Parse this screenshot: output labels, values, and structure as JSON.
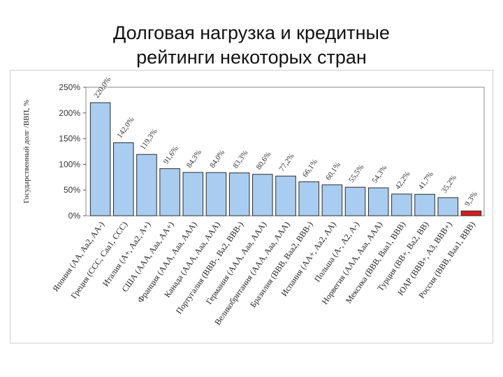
{
  "slide": {
    "title_line1": "Долговая нагрузка и кредитные",
    "title_line2": "рейтинги некоторых стран"
  },
  "chart_data": {
    "type": "bar",
    "title": "",
    "xlabel": "",
    "ylabel": "Государственный долг /ВВП, %",
    "ylim": [
      0,
      250
    ],
    "yticks": [
      "0%",
      "50%",
      "100%",
      "150%",
      "200%",
      "250%"
    ],
    "ytick_values": [
      0,
      50,
      100,
      150,
      200,
      250
    ],
    "grid": false,
    "legend": "none",
    "bar_color": "#a9cdf0",
    "highlight_color": "#d81b1b",
    "categories": [
      "Япония (AA, Aa2, AA-)",
      "Греция (CCC, Caa1, CCC)",
      "Италия (A+, Aa2, A+)",
      "США (AAA, Aaa, AA+)",
      "Франция (AAA, Aaa, AAA)",
      "Канада (AAA, Aaa, AAA)",
      "Португалия (BBB-, Ba2, BBB-)",
      "Германия (AAA, Aaa, AAA)",
      "Великобритания (AAA, Aaa, AAA)",
      "Бразилия (BBB, Baa2, BBB-)",
      "Испания (AA+, Aa2, AA)",
      "Польша (A-, A2, A-)",
      "Норвегия (AAA, Aaa, AAA)",
      "Мексика (BBB, Baa1, BBB)",
      "Турция (BB+, Ba2, BB)",
      "ЮАР (BBB+, A3, BBB+)",
      "Россия (BBB, Baa1, BBB)"
    ],
    "values": [
      220.0,
      142.0,
      119.3,
      91.6,
      84.3,
      84.0,
      83.3,
      80.6,
      77.2,
      66.1,
      60.1,
      55.5,
      54.3,
      42.2,
      41.7,
      35.2,
      9.3
    ],
    "value_labels": [
      "220,0%",
      "142,0%",
      "119,3%",
      "91,6%",
      "84,3%",
      "84,0%",
      "83,3%",
      "80,6%",
      "77,2%",
      "66,1%",
      "60,1%",
      "55,5%",
      "54,3%",
      "42,2%",
      "41,7%",
      "35,2%",
      "9,3%"
    ],
    "highlight_index": 16
  }
}
